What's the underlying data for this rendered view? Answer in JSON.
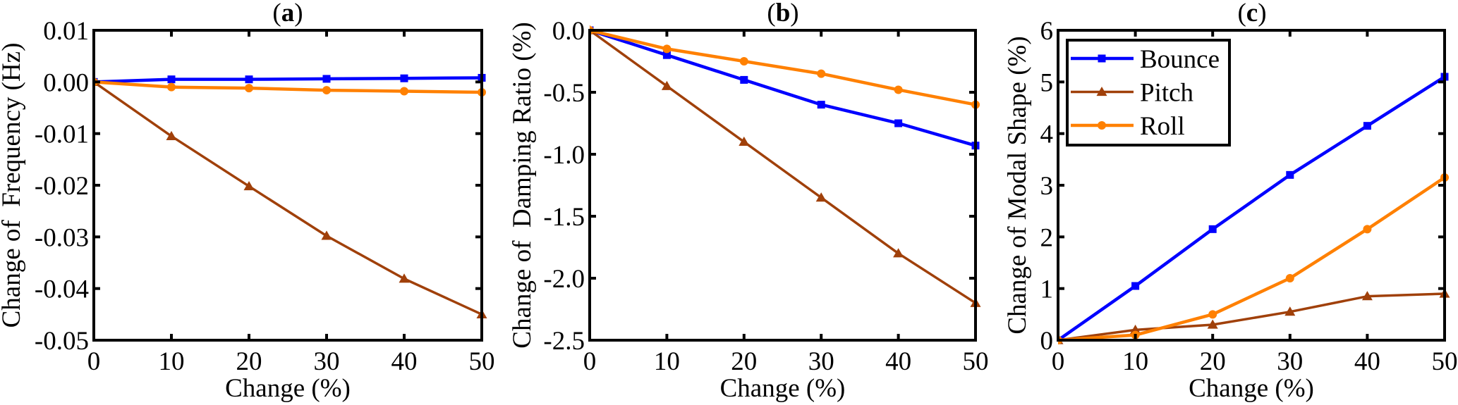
{
  "chart_data": [
    {
      "type": "line",
      "panel": "a",
      "title": "(a)",
      "title_letter": "a",
      "xlabel": "Change (%)",
      "ylabel": "Change of  Frequency (Hz)",
      "xlim": [
        0,
        50
      ],
      "ylim": [
        -0.05,
        0.01
      ],
      "xticks": [
        0,
        10,
        20,
        30,
        40,
        50
      ],
      "xtick_labels": [
        "0",
        "10",
        "20",
        "30",
        "40",
        "50"
      ],
      "yticks": [
        0.01,
        0.0,
        -0.01,
        -0.02,
        -0.03,
        -0.04,
        -0.05
      ],
      "ytick_labels": [
        "0.01",
        "0.00",
        "-0.01",
        "-0.02",
        "-0.03",
        "-0.04",
        "-0.05"
      ],
      "grid": false,
      "x": [
        0,
        10,
        20,
        30,
        40,
        50
      ],
      "series": [
        {
          "name": "Bounce",
          "color": "#0000FF",
          "marker": "square",
          "values": [
            0,
            0.0005,
            0.0005,
            0.0006,
            0.0007,
            0.0008
          ]
        },
        {
          "name": "Pitch",
          "color": "#A0400A",
          "marker": "triangle",
          "values": [
            0,
            -0.0105,
            -0.0202,
            -0.0298,
            -0.0381,
            -0.045
          ]
        },
        {
          "name": "Roll",
          "color": "#FF8000",
          "marker": "circle",
          "values": [
            0,
            -0.001,
            -0.0012,
            -0.0016,
            -0.0018,
            -0.002
          ]
        }
      ]
    },
    {
      "type": "line",
      "panel": "b",
      "title": "(b)",
      "title_letter": "b",
      "xlabel": "Change (%)",
      "ylabel": "Change of  Damping Ratio (%)",
      "xlim": [
        0,
        50
      ],
      "ylim": [
        -2.5,
        0.0
      ],
      "xticks": [
        0,
        10,
        20,
        30,
        40,
        50
      ],
      "xtick_labels": [
        "0",
        "10",
        "20",
        "30",
        "40",
        "50"
      ],
      "yticks": [
        0.0,
        -0.5,
        -1.0,
        -1.5,
        -2.0,
        -2.5
      ],
      "ytick_labels": [
        "0.0",
        "-0.5",
        "-1.0",
        "-1.5",
        "-2.0",
        "-2.5"
      ],
      "grid": false,
      "x": [
        0,
        10,
        20,
        30,
        40,
        50
      ],
      "series": [
        {
          "name": "Bounce",
          "color": "#0000FF",
          "marker": "square",
          "values": [
            0,
            -0.2,
            -0.4,
            -0.6,
            -0.75,
            -0.93
          ]
        },
        {
          "name": "Pitch",
          "color": "#A0400A",
          "marker": "triangle",
          "values": [
            0,
            -0.45,
            -0.9,
            -1.35,
            -1.8,
            -2.2
          ]
        },
        {
          "name": "Roll",
          "color": "#FF8000",
          "marker": "circle",
          "values": [
            0,
            -0.15,
            -0.25,
            -0.35,
            -0.48,
            -0.6
          ]
        }
      ]
    },
    {
      "type": "line",
      "panel": "c",
      "title": "(c)",
      "title_letter": "c",
      "xlabel": "Change (%)",
      "ylabel": "Change of Modal Shape (%)",
      "xlim": [
        0,
        50
      ],
      "ylim": [
        0,
        6
      ],
      "xticks": [
        0,
        10,
        20,
        30,
        40,
        50
      ],
      "xtick_labels": [
        "0",
        "10",
        "20",
        "30",
        "40",
        "50"
      ],
      "yticks": [
        0,
        1,
        2,
        3,
        4,
        5,
        6
      ],
      "ytick_labels": [
        "0",
        "1",
        "2",
        "3",
        "4",
        "5",
        "6"
      ],
      "grid": false,
      "legend": {
        "position": "top-left",
        "entries": [
          "Bounce",
          "Pitch",
          "Roll"
        ]
      },
      "x": [
        0,
        10,
        20,
        30,
        40,
        50
      ],
      "series": [
        {
          "name": "Bounce",
          "color": "#0000FF",
          "marker": "square",
          "values": [
            0,
            1.05,
            2.15,
            3.2,
            4.15,
            5.1
          ]
        },
        {
          "name": "Pitch",
          "color": "#A0400A",
          "marker": "triangle",
          "values": [
            0,
            0.2,
            0.3,
            0.55,
            0.85,
            0.9
          ]
        },
        {
          "name": "Roll",
          "color": "#FF8000",
          "marker": "circle",
          "values": [
            0,
            0.1,
            0.5,
            1.2,
            2.15,
            3.15
          ]
        }
      ]
    }
  ]
}
